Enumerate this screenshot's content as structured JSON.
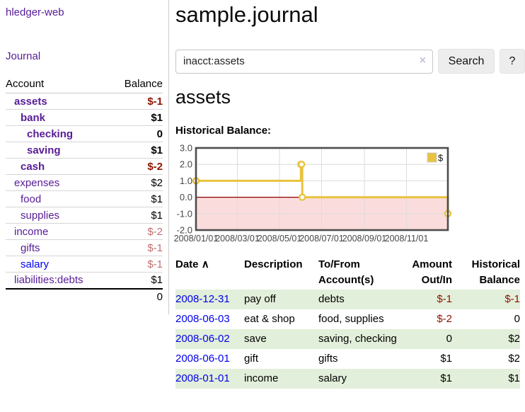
{
  "sidebar": {
    "app_title": "hledger-web",
    "journal_link": "Journal",
    "accounts_table": {
      "headers": [
        "Account",
        "Balance"
      ],
      "rows": [
        {
          "name": "assets",
          "indent": 1,
          "bold": true,
          "balance": "$-1",
          "balance_style": "neg-strong"
        },
        {
          "name": "bank",
          "indent": 2,
          "bold": true,
          "balance": "$1",
          "balance_style": "pos"
        },
        {
          "name": "checking",
          "indent": 3,
          "bold": true,
          "balance": "0",
          "balance_style": "pos"
        },
        {
          "name": "saving",
          "indent": 3,
          "bold": true,
          "balance": "$1",
          "balance_style": "pos"
        },
        {
          "name": "cash",
          "indent": 2,
          "bold": true,
          "balance": "$-2",
          "balance_style": "neg-strong"
        },
        {
          "name": "expenses",
          "indent": 1,
          "bold": false,
          "balance": "$2",
          "balance_style": "pos"
        },
        {
          "name": "food",
          "indent": 2,
          "bold": false,
          "balance": "$1",
          "balance_style": "pos"
        },
        {
          "name": "supplies",
          "indent": 2,
          "bold": false,
          "balance": "$1",
          "balance_style": "pos"
        },
        {
          "name": "income",
          "indent": 1,
          "bold": false,
          "balance": "$-2",
          "balance_style": "neg-soft"
        },
        {
          "name": "gifts",
          "indent": 2,
          "bold": false,
          "balance": "$-1",
          "balance_style": "neg-soft"
        },
        {
          "name": "salary",
          "indent": 2,
          "bold": false,
          "balance": "$-1",
          "balance_style": "neg-soft",
          "unvisited": true
        },
        {
          "name": "liabilities:debts",
          "indent": 1,
          "bold": false,
          "balance": "$1",
          "balance_style": "pos"
        }
      ],
      "total": "0"
    }
  },
  "header": {
    "title": "sample.journal"
  },
  "search": {
    "value": "inacct:assets",
    "clear_icon": "×",
    "button_label": "Search",
    "help_label": "?"
  },
  "account_page": {
    "heading": "assets",
    "chart_title": "Historical Balance:"
  },
  "chart_data": {
    "type": "line",
    "title": "Historical Balance",
    "step": true,
    "series": [
      {
        "name": "$",
        "color": "#e9c33f",
        "points": [
          {
            "date": "2008-01-01",
            "value": 1
          },
          {
            "date": "2008-06-01",
            "value": 2
          },
          {
            "date": "2008-06-02",
            "value": 2
          },
          {
            "date": "2008-06-03",
            "value": 0
          },
          {
            "date": "2008-12-31",
            "value": -1
          }
        ]
      }
    ],
    "x_start": "2008-01-01",
    "x_end": "2008-12-31",
    "x_tick_labels": [
      "2008/01/01",
      "2008/03/01",
      "2008/05/01",
      "2008/07/01",
      "2008/09/01",
      "2008/11/01"
    ],
    "y_ticks": [
      "3.0",
      "2.0",
      "1.0",
      "0.0",
      "-1.0",
      "-2.0"
    ],
    "ylim": [
      -2,
      3
    ],
    "legend": "$",
    "legend_position": "top-right",
    "grid": true,
    "negative_fill": "#fbdcdc",
    "zero_line_color": "#8b0000",
    "grid_color": "#dcdcdc",
    "border_color": "#4d4d4d"
  },
  "register": {
    "headers": {
      "date": "Date",
      "sort_icon": "∧",
      "description": "Description",
      "accounts": "To/From Account(s)",
      "amount": "Amount Out/In",
      "balance": "Historical Balance"
    },
    "rows": [
      {
        "date": "2008-12-31",
        "description": "pay off",
        "accounts": "debts",
        "amount": "$-1",
        "balance": "$-1",
        "amount_neg": true,
        "balance_neg": true
      },
      {
        "date": "2008-06-03",
        "description": "eat & shop",
        "accounts": "food, supplies",
        "amount": "$-2",
        "balance": "0",
        "amount_neg": true,
        "balance_neg": false
      },
      {
        "date": "2008-06-02",
        "description": "save",
        "accounts": "saving, checking",
        "amount": "0",
        "balance": "$2",
        "amount_neg": false,
        "balance_neg": false
      },
      {
        "date": "2008-06-01",
        "description": "gift",
        "accounts": "gifts",
        "amount": "$1",
        "balance": "$2",
        "amount_neg": false,
        "balance_neg": false
      },
      {
        "date": "2008-01-01",
        "description": "income",
        "accounts": "salary",
        "amount": "$1",
        "balance": "$1",
        "amount_neg": false,
        "balance_neg": false
      }
    ]
  },
  "colors": {
    "link_purple": "#571c97",
    "link_blue": "#0000ee",
    "neg_strong": "#8e1300",
    "neg_soft": "#c06f6f",
    "stripe_green": "#e2efda",
    "chart_line": "#e9c33f"
  }
}
